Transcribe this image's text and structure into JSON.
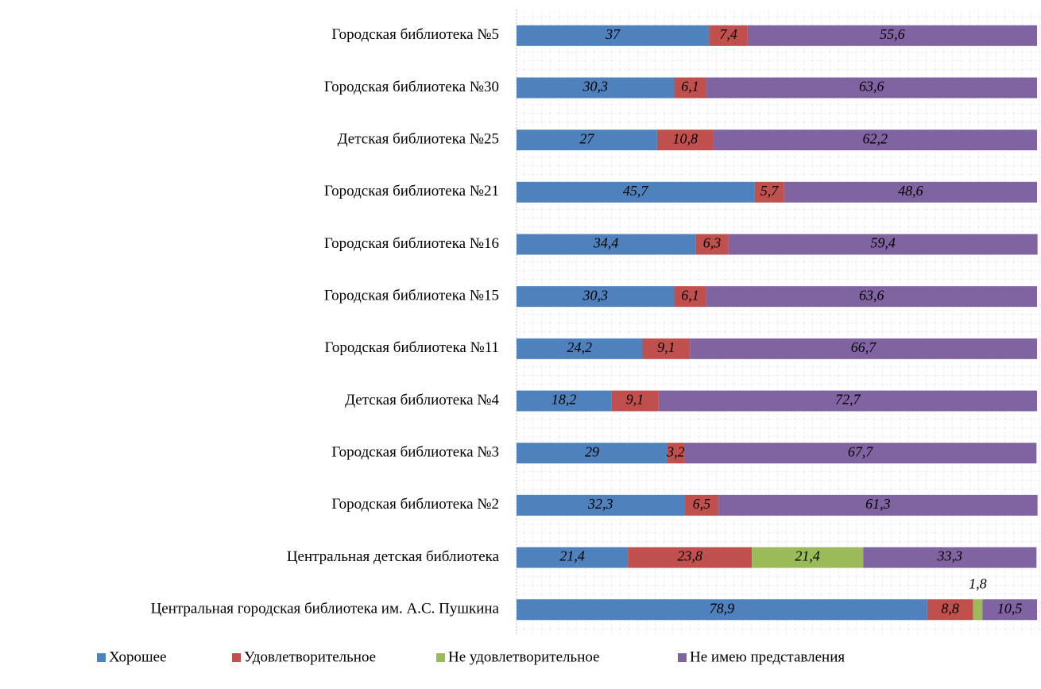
{
  "chart_data": {
    "type": "stacked-bar-horizontal",
    "categories": [
      "Городская библиотека №5",
      "Городская библиотека №30",
      "Детская библиотека №25",
      "Городская библиотека №21",
      "Городская библиотека №16",
      "Городская библиотека №15",
      "Городская библиотека №11",
      "Детская библиотека №4",
      "Городская библиотека №3",
      "Городская библиотека №2",
      "Центральная детская библиотека",
      "Центральная городская библиотека им. А.С. Пушкина"
    ],
    "xlim": [
      0,
      100
    ],
    "grid": true,
    "legend": "bottom",
    "series": [
      {
        "name": "Хорошее",
        "color": "#4f81bd",
        "values": [
          37,
          30.3,
          27,
          45.7,
          34.4,
          30.3,
          24.2,
          18.2,
          29,
          32.3,
          21.4,
          78.9
        ],
        "value_labels": [
          "37",
          "30,3",
          "27",
          "45,7",
          "34,4",
          "30,3",
          "24,2",
          "18,2",
          "29",
          "32,3",
          "21,4",
          "78,9"
        ]
      },
      {
        "name": "Удовлетворительное",
        "color": "#c0504d",
        "values": [
          7.4,
          6.1,
          10.8,
          5.7,
          6.3,
          6.1,
          9.1,
          9.1,
          3.2,
          6.5,
          23.8,
          8.8
        ],
        "value_labels": [
          "7,4",
          "6,1",
          "10,8",
          "5,7",
          "6,3",
          "6,1",
          "9,1",
          "9,1",
          "3,2",
          "6,5",
          "23,8",
          "8,8"
        ]
      },
      {
        "name": "Не удовлетворительное",
        "color": "#9bbb59",
        "values": [
          null,
          null,
          null,
          null,
          null,
          null,
          null,
          null,
          null,
          null,
          21.4,
          1.8
        ],
        "value_labels": [
          null,
          null,
          null,
          null,
          null,
          null,
          null,
          null,
          null,
          null,
          "21,4",
          "1,8"
        ]
      },
      {
        "name": "Не имею представления",
        "color": "#8064a2",
        "values": [
          55.6,
          63.6,
          62.2,
          48.6,
          59.4,
          63.6,
          66.7,
          72.7,
          67.7,
          61.3,
          33.3,
          10.5
        ],
        "value_labels": [
          "55,6",
          "63,6",
          "62,2",
          "48,6",
          "59,4",
          "63,6",
          "66,7",
          "72,7",
          "67,7",
          "61,3",
          "33,3",
          "10,5"
        ]
      }
    ]
  }
}
